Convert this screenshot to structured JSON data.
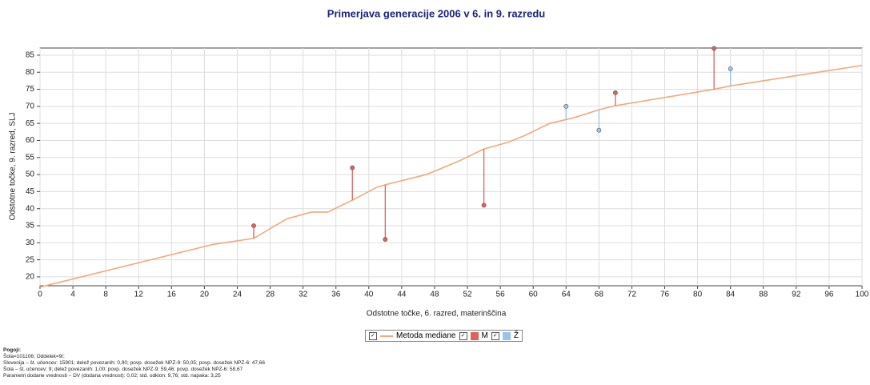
{
  "chart_data": {
    "type": "line",
    "title": "Primerjava generacije 2006 v 6. in 9. razredu",
    "x_label": "Odstotne točke, 6. razred, materinščina",
    "y_label": "Odstotne točke, 9. razred, SLJ",
    "xlim": [
      0,
      100
    ],
    "ylim": [
      17.4,
      87.1
    ],
    "xticks": [
      0,
      4,
      8,
      12,
      16,
      20,
      24,
      28,
      32,
      36,
      40,
      44,
      48,
      52,
      56,
      60,
      64,
      68,
      72,
      76,
      80,
      84,
      88,
      92,
      96,
      100
    ],
    "yticks": [
      20,
      25,
      30,
      35,
      40,
      45,
      50,
      55,
      60,
      65,
      70,
      75,
      80,
      85
    ],
    "grid": true,
    "series": [
      {
        "name": "Metoda mediane",
        "color": "#f5a878",
        "x": [
          0,
          21,
          26,
          30,
          33,
          35,
          38,
          41,
          42,
          47,
          51,
          54,
          57,
          59,
          62,
          65,
          68,
          70,
          82,
          84,
          100
        ],
        "values": [
          17,
          29.5,
          31.3,
          37,
          39,
          39,
          42.5,
          46.3,
          47,
          50,
          54,
          57.5,
          59.5,
          61.5,
          65,
          66.7,
          69,
          70.2,
          75,
          76,
          82
        ]
      },
      {
        "name": "M",
        "color": "#e06060",
        "x": [
          26,
          38,
          42,
          54,
          70,
          82
        ],
        "values": [
          35,
          52,
          31,
          41,
          74,
          87
        ]
      },
      {
        "name": "Ž",
        "color": "#99c4ee",
        "x": [
          64,
          68,
          84
        ],
        "values": [
          70,
          63,
          81
        ]
      }
    ],
    "notes": [
      "Pogoji:",
      "Šola=101106; Oddelek=9/;",
      "Slovenija – št. učencev: 15901; delež povezanih: 0,90; povp. dosežek NPZ-9: 50,05; povp. dosežek NPZ-6: 47,66",
      "Šola – št. učencev: 9; delež povezanih: 1,00; povp. dosežek NPZ-9: 59,46; povp. dosežek NPZ-6: 58,67",
      "Parametri dodane vrednosti – DV (dodana vrednost): 0,02; std. odklon: 9,76; std. napaka: 3,25"
    ]
  }
}
